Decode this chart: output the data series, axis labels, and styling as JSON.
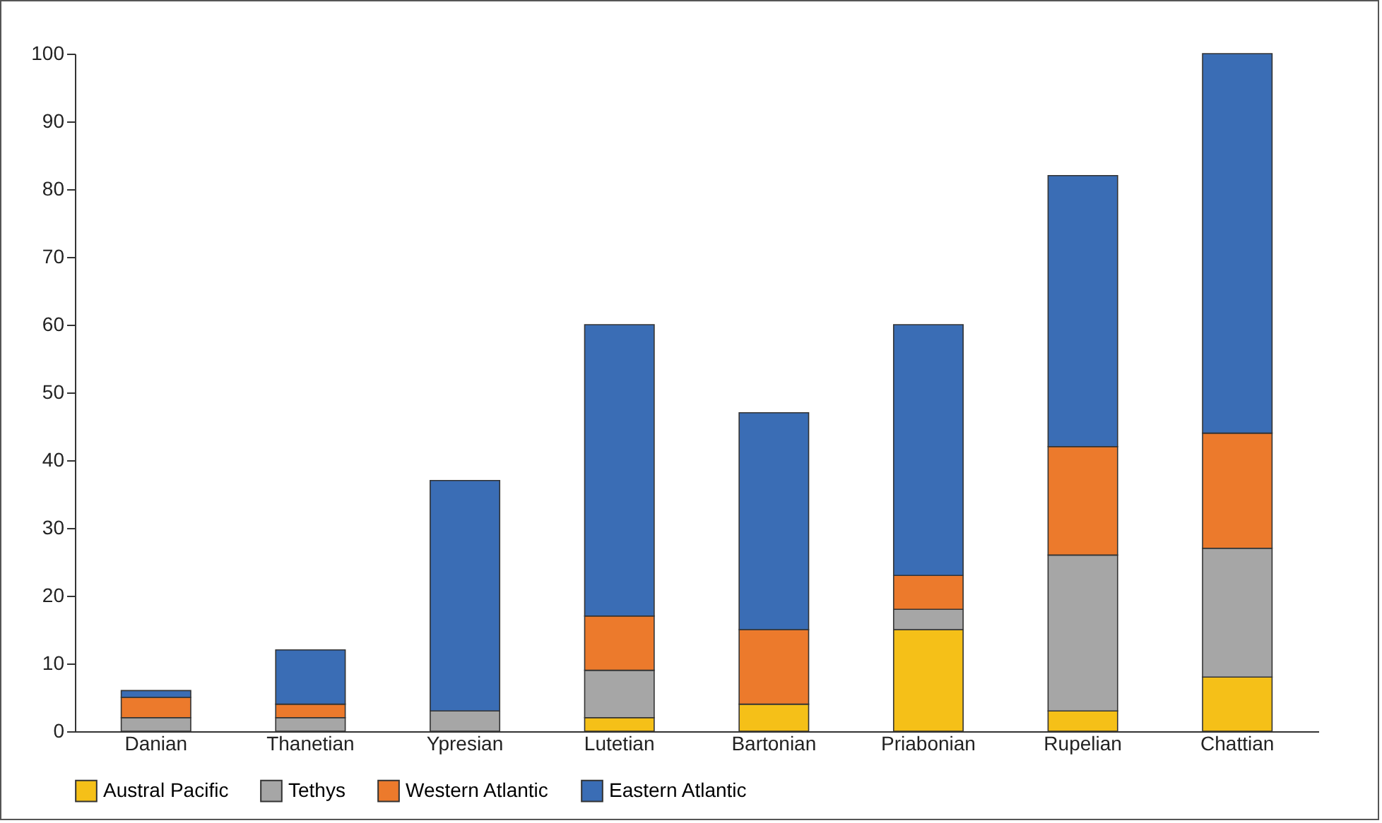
{
  "chart_data": {
    "type": "bar",
    "stacked": true,
    "categories": [
      "Danian",
      "Thanetian",
      "Ypresian",
      "Lutetian",
      "Bartonian",
      "Priabonian",
      "Rupelian",
      "Chattian"
    ],
    "series": [
      {
        "name": "Austral Pacific",
        "color": "#f5c018",
        "values": [
          null,
          null,
          null,
          2,
          4,
          15,
          3,
          8
        ]
      },
      {
        "name": "Tethys",
        "color": "#a6a6a6",
        "values": [
          2,
          2,
          3,
          7,
          null,
          3,
          23,
          19
        ]
      },
      {
        "name": "Western Atlantic",
        "color": "#ec7a2c",
        "values": [
          3,
          2,
          null,
          8,
          11,
          5,
          16,
          17
        ]
      },
      {
        "name": "Eastern Atlantic",
        "color": "#3a6db5",
        "values": [
          1,
          8,
          34,
          43,
          32,
          37,
          40,
          56
        ]
      }
    ],
    "ylim": [
      0,
      100
    ],
    "yticks": [
      0,
      10,
      20,
      30,
      40,
      50,
      60,
      70,
      80,
      90,
      100
    ],
    "grid": false,
    "legend": "bottom"
  }
}
